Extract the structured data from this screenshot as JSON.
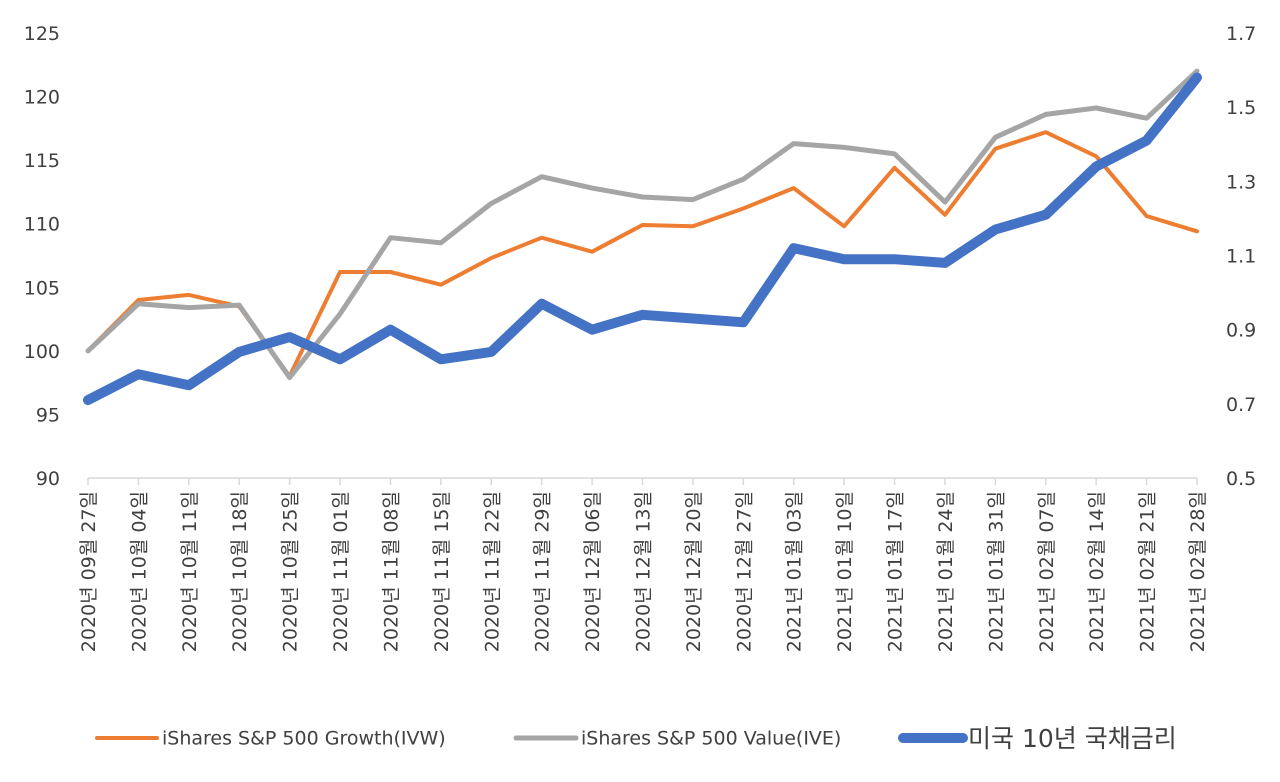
{
  "chart_data": {
    "type": "line",
    "title": "",
    "xlabel": "",
    "ylabel": "",
    "categories": [
      "2020년 09월 27일",
      "2020년 10월 04일",
      "2020년 10월 11일",
      "2020년 10월 18일",
      "2020년 10월 25일",
      "2020년 11월 01일",
      "2020년 11월 08일",
      "2020년 11월 15일",
      "2020년 11월 22일",
      "2020년 11월 29일",
      "2020년 12월 06일",
      "2020년 12월 13일",
      "2020년 12월 20일",
      "2020년 12월 27일",
      "2021년 01월 03일",
      "2021년 01월 10일",
      "2021년 01월 17일",
      "2021년 01월 24일",
      "2021년 01월 31일",
      "2021년 02월 07일",
      "2021년 02월 14일",
      "2021년 02월 21일",
      "2021년 02월 28일"
    ],
    "left_axis": {
      "min": 90,
      "max": 125,
      "ticks": [
        90,
        95,
        100,
        105,
        110,
        115,
        120,
        125
      ]
    },
    "right_axis": {
      "min": 0.5,
      "max": 1.7,
      "ticks": [
        "0.5",
        "0.7",
        "0.9",
        "1.1",
        "1.3",
        "1.5",
        "1.7"
      ]
    },
    "grid": false,
    "legend_position": "bottom",
    "series": [
      {
        "name": "iShares S&P 500 Growth(IVW)",
        "axis": "left",
        "color": "#ED7D31",
        "values": [
          100.0,
          104.0,
          104.4,
          103.5,
          98.0,
          106.2,
          106.2,
          105.2,
          107.3,
          108.9,
          107.8,
          109.9,
          109.8,
          111.2,
          112.8,
          109.8,
          114.4,
          110.7,
          115.9,
          117.2,
          115.3,
          110.6,
          109.4
        ]
      },
      {
        "name": "iShares S&P 500 Value(IVE)",
        "axis": "left",
        "color": "#A5A5A5",
        "values": [
          100.0,
          103.7,
          103.4,
          103.6,
          97.9,
          102.9,
          108.9,
          108.5,
          111.6,
          113.7,
          112.8,
          112.1,
          111.9,
          113.5,
          116.3,
          116.0,
          115.5,
          111.7,
          116.8,
          118.6,
          119.1,
          118.3,
          122.0
        ]
      },
      {
        "name": "미국 10년 국채금리",
        "axis": "right",
        "color": "#4472C4",
        "values": [
          0.71,
          0.78,
          0.75,
          0.84,
          0.88,
          0.82,
          0.9,
          0.82,
          0.84,
          0.97,
          0.9,
          0.94,
          0.93,
          0.92,
          1.12,
          1.09,
          1.09,
          1.08,
          1.17,
          1.21,
          1.34,
          1.41,
          1.58
        ]
      }
    ]
  }
}
